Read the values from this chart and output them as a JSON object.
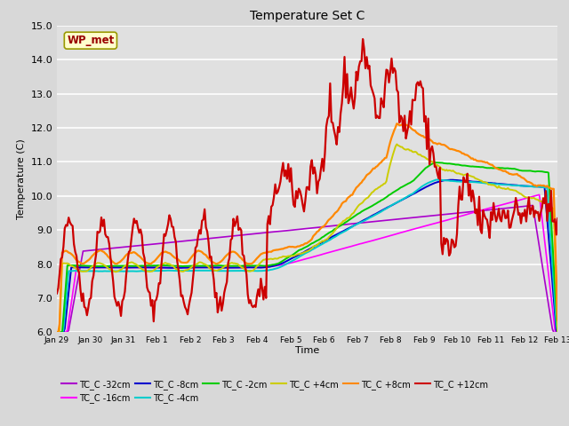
{
  "title": "Temperature Set C",
  "xlabel": "Time",
  "ylabel": "Temperature (C)",
  "ylim": [
    6.0,
    15.0
  ],
  "yticks": [
    6.0,
    7.0,
    8.0,
    9.0,
    10.0,
    11.0,
    12.0,
    13.0,
    14.0,
    15.0
  ],
  "xtick_labels": [
    "Jan 29",
    "Jan 30",
    "Jan 31",
    "Feb 1",
    "Feb 2",
    "Feb 3",
    "Feb 4",
    "Feb 5",
    "Feb 6",
    "Feb 7",
    "Feb 8",
    "Feb 9",
    "Feb 10",
    "Feb 11",
    "Feb 12",
    "Feb 13"
  ],
  "annotation_text": "WP_met",
  "series_colors": {
    "TC_C -32cm": "#aa00cc",
    "TC_C -16cm": "#ff00ff",
    "TC_C -8cm": "#0000cc",
    "TC_C -4cm": "#00cccc",
    "TC_C -2cm": "#00cc00",
    "TC_C +4cm": "#cccc00",
    "TC_C +8cm": "#ff8800",
    "TC_C +12cm": "#cc0000"
  },
  "fig_bg": "#d8d8d8",
  "plot_bg": "#e0e0e0"
}
